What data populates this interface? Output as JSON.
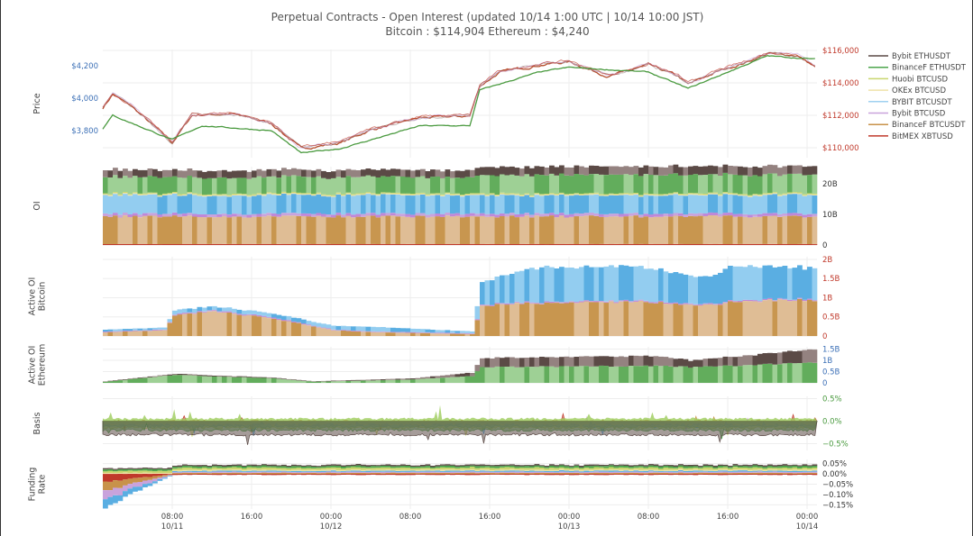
{
  "title": {
    "line1": "Perpetual Contracts - Open Interest   (updated   10/14 1:00 UTC   |   10/14 10:00 JST)",
    "line2": "Bitcoin : $114,904    Ethereum : $4,240"
  },
  "legend": [
    {
      "name": "Bybit ETHUSDT",
      "color": "#5b4a46"
    },
    {
      "name": "BinanceF ETHUSDT",
      "color": "#4ca64c"
    },
    {
      "name": "Huobi BTCUSD",
      "color": "#c9d66e"
    },
    {
      "name": "OKEx BTCUSD",
      "color": "#efe2a8"
    },
    {
      "name": "BYBIT BTCUSDT",
      "color": "#9fd0f0"
    },
    {
      "name": "Bybit BTCUSD",
      "color": "#c9a3dc"
    },
    {
      "name": "BinanceF BTCUSDT",
      "color": "#c8924a"
    },
    {
      "name": "BitMEX XBTUSD",
      "color": "#c0392b"
    }
  ],
  "x_ticks": [
    {
      "time": "10/11 08:00",
      "label": "08:00",
      "sub": "10/11"
    },
    {
      "time": "10/11 16:00",
      "label": "16:00",
      "sub": ""
    },
    {
      "time": "10/12 00:00",
      "label": "00:00",
      "sub": "10/12"
    },
    {
      "time": "10/12 08:00",
      "label": "08:00",
      "sub": ""
    },
    {
      "time": "10/12 16:00",
      "label": "16:00",
      "sub": ""
    },
    {
      "time": "10/13 00:00",
      "label": "00:00",
      "sub": "10/13"
    },
    {
      "time": "10/13 08:00",
      "label": "08:00",
      "sub": ""
    },
    {
      "time": "10/13 16:00",
      "label": "16:00",
      "sub": ""
    },
    {
      "time": "10/14 00:00",
      "label": "00:00",
      "sub": "10/14"
    }
  ],
  "chart_data": [
    {
      "type": "line",
      "panel": "Price",
      "ylabel": "Price",
      "left_axis": {
        "ticks": [
          {
            "v": 4200,
            "label": "$4,200"
          },
          {
            "v": 4000,
            "label": "$4,000"
          },
          {
            "v": 3800,
            "label": "$3,800"
          }
        ],
        "color": "#3b6fb6"
      },
      "right_axis": {
        "ticks": [
          {
            "v": 116000,
            "label": "$116,000"
          },
          {
            "v": 114000,
            "label": "$114,000"
          },
          {
            "v": 112000,
            "label": "$112,000"
          },
          {
            "v": 110000,
            "label": "$110,000"
          }
        ],
        "color": "#c0392b"
      },
      "series": [
        {
          "name": "Bitcoin",
          "axis": "right",
          "color": "#b5502f",
          "points": [
            [
              "10/11 01:00",
              112450
            ],
            [
              "10/11 02:00",
              113300
            ],
            [
              "10/11 04:00",
              112500
            ],
            [
              "10/11 08:00",
              110300
            ],
            [
              "10/11 10:00",
              112000
            ],
            [
              "10/11 14:00",
              112100
            ],
            [
              "10/11 18:00",
              111500
            ],
            [
              "10/11 21:00",
              109950
            ],
            [
              "10/12 01:00",
              110300
            ],
            [
              "10/12 04:00",
              111100
            ],
            [
              "10/12 09:00",
              111850
            ],
            [
              "10/12 14:00",
              111950
            ],
            [
              "10/12 15:00",
              113800
            ],
            [
              "10/12 17:00",
              114650
            ],
            [
              "10/12 21:00",
              115100
            ],
            [
              "10/13 00:00",
              115300
            ],
            [
              "10/13 04:00",
              114400
            ],
            [
              "10/13 08:00",
              115100
            ],
            [
              "10/13 11:00",
              114400
            ],
            [
              "10/13 12:00",
              113900
            ],
            [
              "10/13 15:00",
              114700
            ],
            [
              "10/13 18:00",
              115300
            ],
            [
              "10/13 20:00",
              115800
            ],
            [
              "10/13 23:00",
              115700
            ],
            [
              "10/14 01:00",
              114904
            ]
          ]
        },
        {
          "name": "Ethereum",
          "axis": "left",
          "color": "#4a9a3f",
          "points": [
            [
              "10/11 01:00",
              3811
            ],
            [
              "10/11 02:00",
              3894
            ],
            [
              "10/11 08:00",
              3744
            ],
            [
              "10/11 11:00",
              3830
            ],
            [
              "10/11 18:00",
              3800
            ],
            [
              "10/11 21:00",
              3661
            ],
            [
              "10/12 01:00",
              3690
            ],
            [
              "10/12 09:00",
              3830
            ],
            [
              "10/12 14:00",
              3830
            ],
            [
              "10/12 15:00",
              4050
            ],
            [
              "10/12 21:00",
              4161
            ],
            [
              "10/13 00:00",
              4190
            ],
            [
              "10/13 08:00",
              4161
            ],
            [
              "10/13 12:00",
              4060
            ],
            [
              "10/13 20:00",
              4261
            ],
            [
              "10/14 01:00",
              4240
            ]
          ]
        }
      ]
    },
    {
      "type": "area",
      "panel": "OI",
      "ylabel": "OI",
      "stacked": true,
      "right_axis": {
        "ticks": [
          {
            "v": 20,
            "label": "20B"
          },
          {
            "v": 10,
            "label": "10B"
          },
          {
            "v": 0,
            "label": "0"
          }
        ],
        "color": "#333"
      },
      "times": [
        "10/11 01:00",
        "10/12 14:00",
        "10/12 15:00",
        "10/14 01:00"
      ],
      "series": [
        {
          "name": "BitMEX XBTUSD",
          "color": "#c0392b",
          "alt": "#c0392b",
          "values": [
            0.3,
            0.3,
            0.3,
            0.3
          ]
        },
        {
          "name": "BinanceF BTCUSDT",
          "color": "#c8964f",
          "alt": "#dfbd95",
          "values": [
            9.0,
            9.0,
            9.0,
            9.0
          ]
        },
        {
          "name": "Bybit BTCUSD",
          "color": "#c088d8",
          "alt": "#c9a3dc",
          "values": [
            0.9,
            0.9,
            0.9,
            0.9
          ]
        },
        {
          "name": "BYBIT BTCUSDT",
          "color": "#5aaee2",
          "alt": "#93cdf0",
          "values": [
            6.0,
            6.0,
            6.0,
            6.0
          ]
        },
        {
          "name": "OKEx BTCUSD",
          "color": "#efe2a8",
          "alt": "#efe2a8",
          "values": [
            0.3,
            0.3,
            0.3,
            0.3
          ]
        },
        {
          "name": "Huobi BTCUSD",
          "color": "#c9d66e",
          "alt": "#c9d66e",
          "values": [
            0.3,
            0.3,
            0.3,
            0.3
          ]
        },
        {
          "name": "BinanceF ETHUSDT",
          "color": "#62ad5c",
          "alt": "#9ed095",
          "values": [
            5.3,
            5.3,
            6.0,
            6.2
          ]
        },
        {
          "name": "Bybit ETHUSDT",
          "color": "#5b4a46",
          "alt": "#948280",
          "values": [
            2.3,
            2.3,
            2.6,
            2.8
          ]
        }
      ]
    },
    {
      "type": "area",
      "panel": "Active OI Bitcoin",
      "ylabel": "Active OI\nBitcoin",
      "stacked": true,
      "right_axis": {
        "ticks": [
          {
            "v": 2,
            "label": "2B"
          },
          {
            "v": 1.5,
            "label": "1.5B"
          },
          {
            "v": 1,
            "label": "1B"
          },
          {
            "v": 0.5,
            "label": "0.5B"
          },
          {
            "v": 0,
            "label": "0"
          }
        ],
        "color": "#c0392b"
      },
      "times": [
        "10/11 01:00",
        "10/11 07:00",
        "10/11 08:00",
        "10/11 12:00",
        "10/11 18:00",
        "10/12 00:00",
        "10/12 04:00",
        "10/12 14:00",
        "10/12 15:00",
        "10/12 20:00",
        "10/13 06:00",
        "10/13 14:00",
        "10/13 16:00",
        "10/14 01:00"
      ],
      "series": [
        {
          "name": "BinanceF BTCUSDT",
          "color": "#c8964f",
          "alt": "#dfbd95",
          "values": [
            0.1,
            0.15,
            0.55,
            0.65,
            0.45,
            0.15,
            0.1,
            0.05,
            0.8,
            0.85,
            0.9,
            0.8,
            0.9,
            0.95
          ]
        },
        {
          "name": "Bybit BTCUSD",
          "color": "#c088d8",
          "alt": "#c9a3dc",
          "values": [
            0.02,
            0.02,
            0.03,
            0.03,
            0.03,
            0.02,
            0.02,
            0.02,
            0.03,
            0.03,
            0.03,
            0.03,
            0.03,
            0.03
          ]
        },
        {
          "name": "BYBIT BTCUSDT",
          "color": "#5aaee2",
          "alt": "#93cdf0",
          "values": [
            0.05,
            0.05,
            0.1,
            0.1,
            0.1,
            0.1,
            0.12,
            0.05,
            0.6,
            0.9,
            0.9,
            0.7,
            0.9,
            0.8
          ]
        }
      ]
    },
    {
      "type": "area",
      "panel": "Active OI Ethereum",
      "ylabel": "Active OI\nEthereum",
      "stacked": true,
      "right_axis": {
        "ticks": [
          {
            "v": 1.5,
            "label": "1.5B"
          },
          {
            "v": 1,
            "label": "1B"
          },
          {
            "v": 0.5,
            "label": "0.5B"
          },
          {
            "v": 0,
            "label": "0"
          }
        ],
        "color": "#3b6fb6"
      },
      "times": [
        "10/11 01:00",
        "10/11 08:00",
        "10/11 18:00",
        "10/11 22:00",
        "10/12 08:00",
        "10/12 14:00",
        "10/12 15:00",
        "10/13 08:00",
        "10/13 12:00",
        "10/14 01:00"
      ],
      "series": [
        {
          "name": "BinanceF ETHUSDT",
          "color": "#62ad5c",
          "alt": "#9ed095",
          "values": [
            0.05,
            0.35,
            0.2,
            0.05,
            0.15,
            0.3,
            0.7,
            0.75,
            0.7,
            0.9
          ]
        },
        {
          "name": "Bybit ETHUSDT",
          "color": "#5b4a46",
          "alt": "#948280",
          "values": [
            0.02,
            0.05,
            0.03,
            0.02,
            0.05,
            0.15,
            0.4,
            0.45,
            0.3,
            0.6
          ]
        }
      ]
    },
    {
      "type": "line",
      "panel": "Basis",
      "ylabel": "Basis",
      "unit": "%",
      "right_axis": {
        "ticks": [
          {
            "v": 0.5,
            "label": "0.5%"
          },
          {
            "v": 0,
            "label": "0.0%"
          },
          {
            "v": -0.5,
            "label": "−0.5%"
          }
        ],
        "color": "#4a9a3f"
      },
      "series": [
        {
          "name": "BitMEX XBTUSD",
          "color": "#c0392b",
          "mean": 0.0
        },
        {
          "name": "BinanceF BTCUSDT",
          "color": "#c8924a",
          "mean": -0.04
        },
        {
          "name": "Bybit BTCUSD",
          "color": "#c9a3dc",
          "mean": -0.08
        },
        {
          "name": "BYBIT BTCUSDT",
          "color": "#5aaee2",
          "mean": -0.12
        },
        {
          "name": "OKEx BTCUSD",
          "color": "#efe2a8",
          "mean": -0.06
        },
        {
          "name": "Huobi BTCUSD",
          "color": "#c9d66e",
          "mean": -0.15
        },
        {
          "name": "BinanceF ETHUSDT",
          "color": "#4ca64c",
          "mean": -0.2
        },
        {
          "name": "Bybit ETHUSDT",
          "color": "#5b4a46",
          "mean": -0.3
        }
      ]
    },
    {
      "type": "area",
      "panel": "Funding Rate",
      "ylabel": "Funding\nRate",
      "unit": "%",
      "right_axis": {
        "ticks": [
          {
            "v": 0.05,
            "label": "0.05%"
          },
          {
            "v": 0,
            "label": "0.00%"
          },
          {
            "v": -0.05,
            "label": "−0.05%"
          },
          {
            "v": -0.1,
            "label": "−0.10%"
          },
          {
            "v": -0.15,
            "label": "−0.15%"
          }
        ],
        "color": "#333"
      },
      "series": [
        {
          "name": "BitMEX XBTUSD",
          "color": "#c0392b",
          "mean": -0.005
        },
        {
          "name": "BinanceF BTCUSDT",
          "color": "#c8924a",
          "mean": 0.005
        },
        {
          "name": "Bybit BTCUSD",
          "color": "#c9a3dc",
          "mean": 0.005
        },
        {
          "name": "BYBIT BTCUSDT",
          "color": "#5aaee2",
          "mean": 0.005
        },
        {
          "name": "OKEx BTCUSD",
          "color": "#efe2a8",
          "mean": 0.005
        },
        {
          "name": "Huobi BTCUSD",
          "color": "#c9d66e",
          "mean": 0.01
        },
        {
          "name": "BinanceF ETHUSDT",
          "color": "#4ca64c",
          "mean": 0.008
        },
        {
          "name": "Bybit ETHUSDT",
          "color": "#5b4a46",
          "mean": 0.006
        }
      ]
    }
  ]
}
